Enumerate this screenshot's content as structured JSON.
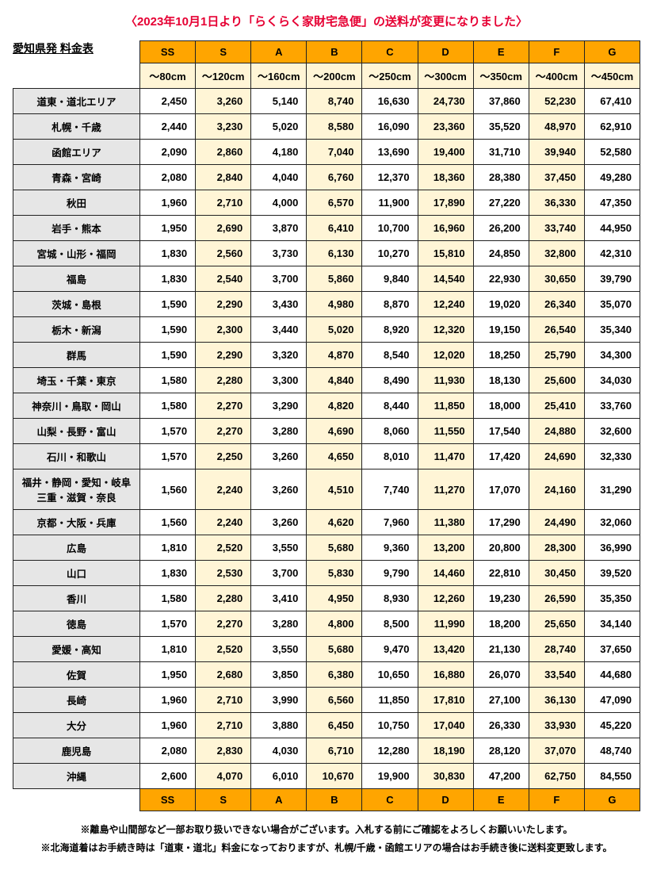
{
  "title": "〈2023年10月1日より「らくらく家財宅急便」の送料が変更になりました〉",
  "subtitle": "愛知県発 料金表",
  "sizes": [
    "SS",
    "S",
    "A",
    "B",
    "C",
    "D",
    "E",
    "F",
    "G"
  ],
  "cms": [
    "～80cm",
    "～120cm",
    "～160cm",
    "～200cm",
    "～250cm",
    "～300cm",
    "～350cm",
    "～400cm",
    "～450cm"
  ],
  "highlight_cols": [
    1,
    3,
    5,
    7
  ],
  "rows": [
    {
      "region": "道東・道北エリア",
      "vals": [
        "2,450",
        "3,260",
        "5,140",
        "8,740",
        "16,630",
        "24,730",
        "37,860",
        "52,230",
        "67,410"
      ]
    },
    {
      "region": "札幌・千歳",
      "vals": [
        "2,440",
        "3,230",
        "5,020",
        "8,580",
        "16,090",
        "23,360",
        "35,520",
        "48,970",
        "62,910"
      ]
    },
    {
      "region": "函館エリア",
      "vals": [
        "2,090",
        "2,860",
        "4,180",
        "7,040",
        "13,690",
        "19,400",
        "31,710",
        "39,940",
        "52,580"
      ]
    },
    {
      "region": "青森・宮崎",
      "vals": [
        "2,080",
        "2,840",
        "4,040",
        "6,760",
        "12,370",
        "18,360",
        "28,380",
        "37,450",
        "49,280"
      ]
    },
    {
      "region": "秋田",
      "vals": [
        "1,960",
        "2,710",
        "4,000",
        "6,570",
        "11,900",
        "17,890",
        "27,220",
        "36,330",
        "47,350"
      ]
    },
    {
      "region": "岩手・熊本",
      "vals": [
        "1,950",
        "2,690",
        "3,870",
        "6,410",
        "10,700",
        "16,960",
        "26,200",
        "33,740",
        "44,950"
      ]
    },
    {
      "region": "宮城・山形・福岡",
      "vals": [
        "1,830",
        "2,560",
        "3,730",
        "6,130",
        "10,270",
        "15,810",
        "24,850",
        "32,800",
        "42,310"
      ]
    },
    {
      "region": "福島",
      "vals": [
        "1,830",
        "2,540",
        "3,700",
        "5,860",
        "9,840",
        "14,540",
        "22,930",
        "30,650",
        "39,790"
      ]
    },
    {
      "region": "茨城・島根",
      "vals": [
        "1,590",
        "2,290",
        "3,430",
        "4,980",
        "8,870",
        "12,240",
        "19,020",
        "26,340",
        "35,070"
      ]
    },
    {
      "region": "栃木・新潟",
      "vals": [
        "1,590",
        "2,300",
        "3,440",
        "5,020",
        "8,920",
        "12,320",
        "19,150",
        "26,540",
        "35,340"
      ]
    },
    {
      "region": "群馬",
      "vals": [
        "1,590",
        "2,290",
        "3,320",
        "4,870",
        "8,540",
        "12,020",
        "18,250",
        "25,790",
        "34,300"
      ]
    },
    {
      "region": "埼玉・千葉・東京",
      "vals": [
        "1,580",
        "2,280",
        "3,300",
        "4,840",
        "8,490",
        "11,930",
        "18,130",
        "25,600",
        "34,030"
      ]
    },
    {
      "region": "神奈川・鳥取・岡山",
      "vals": [
        "1,580",
        "2,270",
        "3,290",
        "4,820",
        "8,440",
        "11,850",
        "18,000",
        "25,410",
        "33,760"
      ]
    },
    {
      "region": "山梨・長野・富山",
      "vals": [
        "1,570",
        "2,270",
        "3,280",
        "4,690",
        "8,060",
        "11,550",
        "17,540",
        "24,880",
        "32,600"
      ]
    },
    {
      "region": "石川・和歌山",
      "vals": [
        "1,570",
        "2,250",
        "3,260",
        "4,650",
        "8,010",
        "11,470",
        "17,420",
        "24,690",
        "32,330"
      ]
    },
    {
      "region": "福井・静岡・愛知・岐阜 三重・滋賀・奈良",
      "vals": [
        "1,560",
        "2,240",
        "3,260",
        "4,510",
        "7,740",
        "11,270",
        "17,070",
        "24,160",
        "31,290"
      ]
    },
    {
      "region": "京都・大阪・兵庫",
      "vals": [
        "1,560",
        "2,240",
        "3,260",
        "4,620",
        "7,960",
        "11,380",
        "17,290",
        "24,490",
        "32,060"
      ]
    },
    {
      "region": "広島",
      "vals": [
        "1,810",
        "2,520",
        "3,550",
        "5,680",
        "9,360",
        "13,200",
        "20,800",
        "28,300",
        "36,990"
      ]
    },
    {
      "region": "山口",
      "vals": [
        "1,830",
        "2,530",
        "3,700",
        "5,830",
        "9,790",
        "14,460",
        "22,810",
        "30,450",
        "39,520"
      ]
    },
    {
      "region": "香川",
      "vals": [
        "1,580",
        "2,280",
        "3,410",
        "4,950",
        "8,930",
        "12,260",
        "19,230",
        "26,590",
        "35,350"
      ]
    },
    {
      "region": "徳島",
      "vals": [
        "1,570",
        "2,270",
        "3,280",
        "4,800",
        "8,500",
        "11,990",
        "18,200",
        "25,650",
        "34,140"
      ]
    },
    {
      "region": "愛媛・高知",
      "vals": [
        "1,810",
        "2,520",
        "3,550",
        "5,680",
        "9,470",
        "13,420",
        "21,130",
        "28,740",
        "37,650"
      ]
    },
    {
      "region": "佐賀",
      "vals": [
        "1,950",
        "2,680",
        "3,850",
        "6,380",
        "10,650",
        "16,880",
        "26,070",
        "33,540",
        "44,680"
      ]
    },
    {
      "region": "長崎",
      "vals": [
        "1,960",
        "2,710",
        "3,990",
        "6,560",
        "11,850",
        "17,810",
        "27,100",
        "36,130",
        "47,090"
      ]
    },
    {
      "region": "大分",
      "vals": [
        "1,960",
        "2,710",
        "3,880",
        "6,450",
        "10,750",
        "17,040",
        "26,330",
        "33,930",
        "45,220"
      ]
    },
    {
      "region": "鹿児島",
      "vals": [
        "2,080",
        "2,830",
        "4,030",
        "6,710",
        "12,280",
        "18,190",
        "28,120",
        "37,070",
        "48,740"
      ]
    },
    {
      "region": "沖縄",
      "vals": [
        "2,600",
        "4,070",
        "6,010",
        "10,670",
        "19,900",
        "30,830",
        "47,200",
        "62,750",
        "84,550"
      ]
    }
  ],
  "notes": [
    "※離島や山間部など一部お取り扱いできない場合がございます。入札する前にご確認をよろしくお願いいたします。",
    "※北海道着はお手続き時は「道東・道北」料金になっておりますが、札幌/千歳・函館エリアの場合はお手続き後に送料変更致します。"
  ]
}
